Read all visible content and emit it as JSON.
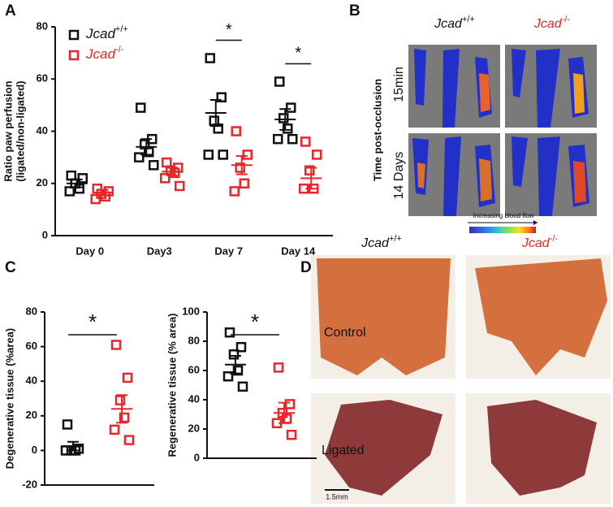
{
  "panel_labels": [
    "A",
    "B",
    "C",
    "D"
  ],
  "chart_data": [
    {
      "type": "dotplot",
      "ylabel": [
        "Ratio paw perfusion",
        "(ligated/non-ligated)"
      ],
      "categories": [
        "Day 0",
        "Day3",
        "Day 7",
        "Day 14"
      ],
      "ylim": [
        0,
        80
      ],
      "yticks": [
        0,
        20,
        40,
        60,
        80
      ],
      "series": [
        {
          "name": "Jcad",
          "superscript": "+/+",
          "color": "#111111",
          "values": [
            [
              23,
              22,
              20,
              18,
              17
            ],
            [
              49,
              37,
              35,
              32,
              30,
              27
            ],
            [
              68,
              53,
              44,
              41,
              31,
              31
            ],
            [
              59,
              49,
              45,
              41,
              37,
              37
            ]
          ],
          "mean": [
            20,
            34,
            47,
            44.5
          ],
          "sem": [
            1.5,
            3,
            5,
            4
          ]
        },
        {
          "name": "Jcad",
          "superscript": "-/-",
          "color": "#e8262b",
          "values": [
            [
              18,
              17,
              16,
              15,
              14
            ],
            [
              28,
              26,
              25,
              24,
              22,
              19
            ],
            [
              40,
              31,
              26,
              20,
              17
            ],
            [
              36,
              31,
              25,
              18,
              18
            ]
          ],
          "mean": [
            16.5,
            24.5,
            27,
            22
          ],
          "sem": [
            1,
            1.5,
            3.5,
            4
          ]
        }
      ],
      "annotations": [
        {
          "text": "*",
          "category": "Day 7"
        },
        {
          "text": "*",
          "category": "Day 14"
        }
      ]
    },
    {
      "type": "dotplot",
      "ylabel": [
        "Degenerative tissue (%area)"
      ],
      "ylim": [
        -20,
        80
      ],
      "yticks": [
        -20,
        0,
        20,
        40,
        60,
        80
      ],
      "series": [
        {
          "color": "#111111",
          "values": [
            15,
            1,
            0,
            0,
            0
          ],
          "mean": 2.5,
          "sem": 2.5
        },
        {
          "color": "#e8262b",
          "values": [
            61,
            42,
            29,
            19,
            12,
            6
          ],
          "mean": 24,
          "sem": 8
        }
      ],
      "annotation": "*"
    },
    {
      "type": "dotplot",
      "ylabel": [
        "Regenerative tissue (% area)"
      ],
      "ylim": [
        0,
        100
      ],
      "yticks": [
        0,
        20,
        40,
        60,
        80,
        100
      ],
      "series": [
        {
          "color": "#111111",
          "values": [
            86,
            76,
            71,
            60,
            56,
            49
          ],
          "mean": 64,
          "sem": 6
        },
        {
          "color": "#e8262b",
          "values": [
            62,
            37,
            31,
            27,
            24,
            16
          ],
          "mean": 31,
          "sem": 7
        }
      ],
      "annotation": "*"
    }
  ],
  "panel_b": {
    "columns": [
      {
        "name": "Jcad",
        "superscript": "+/+"
      },
      {
        "name": "Jcad",
        "superscript": "-/-"
      }
    ],
    "axis_title": "Time post-occlusion",
    "rows": [
      "15min",
      "14 Days"
    ],
    "colorbar_label": "Increasing blood flow"
  },
  "panel_d": {
    "columns": [
      {
        "name": "Jcad",
        "superscript": "+/+"
      },
      {
        "name": "Jcad",
        "superscript": "-/-"
      }
    ],
    "rows": [
      "Control",
      "Ligated"
    ],
    "scale_bar": "1.5mm"
  }
}
